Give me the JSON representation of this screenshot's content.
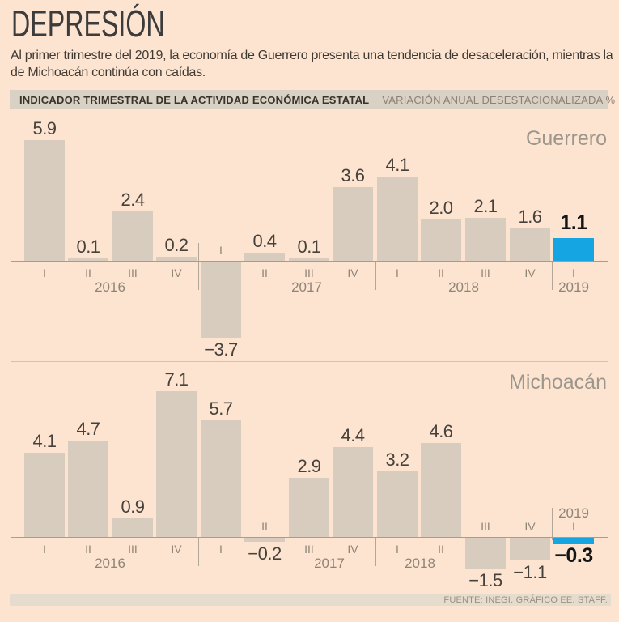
{
  "title": "DEPRESIÓN",
  "subtitle": "Al primer trimestre del 2019, la economía de Guerrero presenta una tendencia de desaceleración, mientras la de Michoacán continúa con caídas.",
  "header_bar": {
    "left": "INDICADOR TRIMESTRAL DE LA ACTIVIDAD ECONÓMICA ESTATAL",
    "right": "VARIACIÓN ANUAL DESESTACIONALIZADA %"
  },
  "footer": {
    "source": "FUENTE: INEGI. GRÁFICO EE. STAFF."
  },
  "colors": {
    "background": "#fde4d1",
    "bar": "#d8ccbe",
    "highlight": "#14a5e2",
    "axis": "#a89c8e",
    "value_text": "#46413a",
    "muted_text": "#8f8477",
    "region_text": "#9d968c",
    "header_bg": "#d9d2c4",
    "footer_bg": "#e6dccd"
  },
  "chart_data": [
    {
      "type": "bar",
      "region": "Guerrero",
      "categories": [
        "I",
        "II",
        "III",
        "IV",
        "I",
        "II",
        "III",
        "IV",
        "I",
        "II",
        "III",
        "IV",
        "I"
      ],
      "years": [
        {
          "label": "2016",
          "from": 0,
          "to": 3
        },
        {
          "label": "2017",
          "from": 4,
          "to": 7
        },
        {
          "label": "2018",
          "from": 8,
          "to": 11
        },
        {
          "label": "2019",
          "from": 12,
          "to": 12
        }
      ],
      "values": [
        5.9,
        0.1,
        2.4,
        0.2,
        -3.7,
        0.4,
        0.1,
        3.6,
        4.1,
        2.0,
        2.1,
        1.6,
        1.1
      ],
      "value_labels": [
        "5.9",
        "0.1",
        "2.4",
        "0.2",
        "−3.7",
        "0.4",
        "0.1",
        "3.6",
        "4.1",
        "2.0",
        "2.1",
        "1.6",
        "1.1"
      ],
      "highlight_index": 12,
      "ylim": [
        -4.2,
        6.2
      ],
      "grid": false,
      "legend": false
    },
    {
      "type": "bar",
      "region": "Michoacán",
      "categories": [
        "I",
        "II",
        "III",
        "IV",
        "I",
        "II",
        "III",
        "IV",
        "I",
        "II",
        "III",
        "IV",
        "I"
      ],
      "years": [
        {
          "label": "2016",
          "from": 0,
          "to": 3
        },
        {
          "label": "2017",
          "from": 4,
          "to": 7
        },
        {
          "label": "2018",
          "from": 8,
          "to": 11
        },
        {
          "label": "2019",
          "from": 12,
          "to": 12
        }
      ],
      "values": [
        4.1,
        4.7,
        0.9,
        7.1,
        5.7,
        -0.2,
        2.9,
        4.4,
        3.2,
        4.6,
        -1.5,
        -1.1,
        -0.3
      ],
      "value_labels": [
        "4.1",
        "4.7",
        "0.9",
        "7.1",
        "5.7",
        "−0.2",
        "2.9",
        "4.4",
        "3.2",
        "4.6",
        "−1.5",
        "−1.1",
        "−0.3"
      ],
      "highlight_index": 12,
      "ylim": [
        -1.9,
        7.5
      ],
      "grid": false,
      "legend": false
    }
  ]
}
